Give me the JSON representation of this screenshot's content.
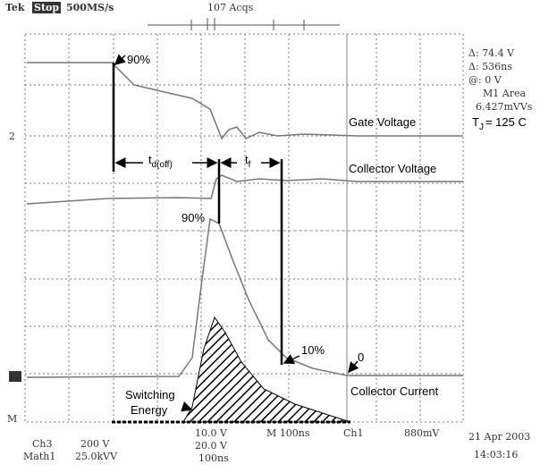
{
  "header": {
    "brand": "Tek",
    "state": "Stop",
    "rate": "500MS/s",
    "acqs": "107 Acqs"
  },
  "readout": {
    "delta_v": "Δ: 74.4 V",
    "delta_t": "Δ: 536ns",
    "at": "@: 0 V",
    "area_label": "M1 Area",
    "area_value": "6.427mVVs"
  },
  "temperature": {
    "main": "T",
    "sub": "J",
    "rest": "= 125  C"
  },
  "markers": {
    "ch2": "2",
    "math": "M"
  },
  "labels": {
    "gate_voltage": "Gate Voltage",
    "collector_voltage": "Collector Voltage",
    "collector_current": "Collector Current",
    "gate_90": "90%",
    "vce_90": "90%",
    "ic_10": "10%",
    "zero": "0",
    "td_off": {
      "main": "t",
      "sub": "d(off)"
    },
    "tf": {
      "main": "t",
      "sub": "f"
    },
    "switching_energy": [
      "Switching",
      "Energy"
    ]
  },
  "footer": {
    "ch3": "Ch3",
    "ch3_scale": "200 V",
    "math1": "Math1",
    "math1_scale": "25.0kVV",
    "ch_scale_a": "10.0 V",
    "ch_scale_b": "20.0 V",
    "math_time": "100ns",
    "timebase": "M 100ns",
    "trig_ch": "Ch1",
    "trig_level": "880mV",
    "date": "21 Apr 2003",
    "time": "14:03:16"
  }
}
